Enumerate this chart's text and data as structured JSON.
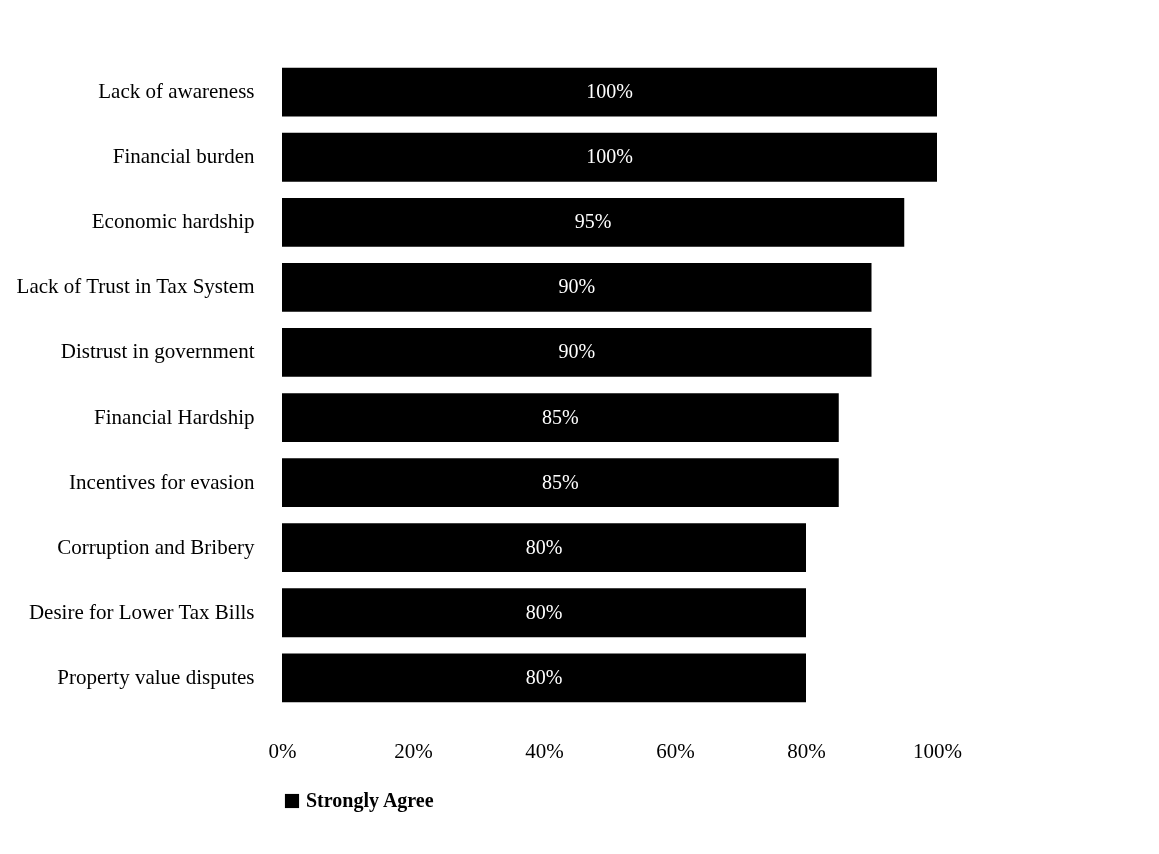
{
  "chart_data": {
    "type": "bar",
    "orientation": "horizontal",
    "categories": [
      "Lack of awareness",
      "Financial burden",
      "Economic hardship",
      "Lack of Trust in Tax System",
      "Distrust in government",
      "Financial Hardship",
      "Incentives for evasion",
      "Corruption and Bribery",
      "Desire for Lower Tax Bills",
      "Property value disputes"
    ],
    "series": [
      {
        "name": "Strongly Agree",
        "color": "#000000",
        "values": [
          100,
          100,
          95,
          90,
          90,
          85,
          85,
          80,
          80,
          80
        ]
      }
    ],
    "value_labels": [
      "100%",
      "100%",
      "95%",
      "90%",
      "90%",
      "85%",
      "85%",
      "80%",
      "80%",
      "80%"
    ],
    "xlim": [
      0,
      100
    ],
    "xticks": [
      {
        "value": 0,
        "label": "0%"
      },
      {
        "value": 20,
        "label": "20%"
      },
      {
        "value": 40,
        "label": "40%"
      },
      {
        "value": 60,
        "label": "60%"
      },
      {
        "value": 80,
        "label": "80%"
      },
      {
        "value": 100,
        "label": "100%"
      }
    ],
    "grid": false,
    "legend": "bottom"
  }
}
